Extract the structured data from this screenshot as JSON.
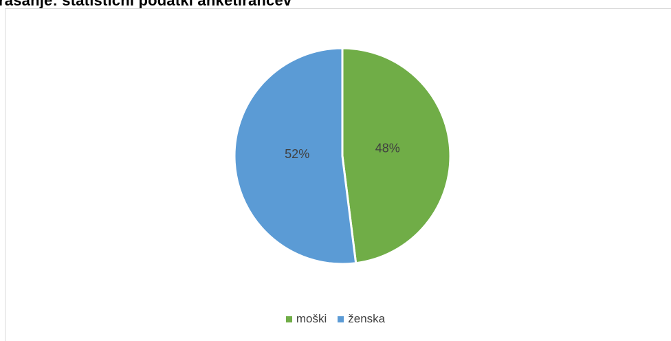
{
  "heading": "rašanje: statistični podatki anketirancev",
  "chart_data": {
    "type": "pie",
    "title": "",
    "slices": [
      {
        "label": "moški",
        "value": 48,
        "display": "48%",
        "color": "#70ad47"
      },
      {
        "label": "ženska",
        "value": 52,
        "display": "52%",
        "color": "#5b9bd5"
      }
    ],
    "legend_position": "bottom"
  }
}
